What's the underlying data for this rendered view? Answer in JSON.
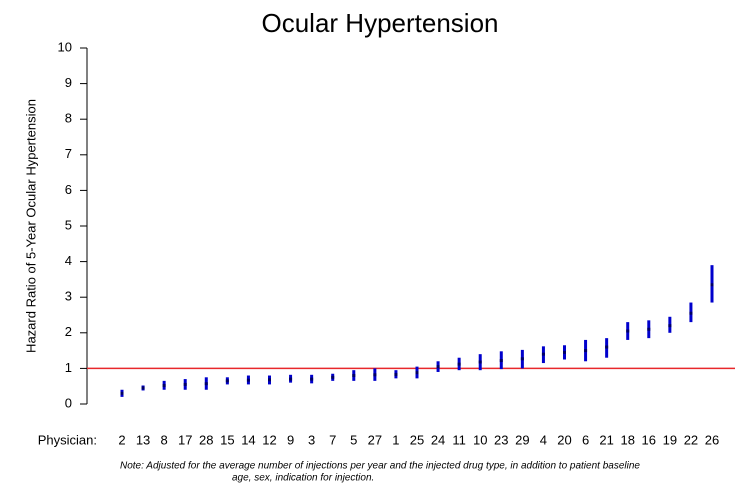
{
  "chart_data": {
    "type": "errorbar",
    "title": "Ocular Hypertension",
    "y_label": "Hazard Ratio of 5-Year Ocular Hypertension",
    "x_label": "Physician:",
    "note": [
      "Note: Adjusted for the average number of injections per year and the injected drug type, in addition to patient baseline",
      "age, sex, indication for injection."
    ],
    "categories": [
      "2",
      "13",
      "8",
      "17",
      "28",
      "15",
      "14",
      "12",
      "9",
      "3",
      "7",
      "5",
      "27",
      "1",
      "25",
      "24",
      "11",
      "10",
      "23",
      "29",
      "4",
      "20",
      "6",
      "21",
      "18",
      "16",
      "19",
      "22",
      "26"
    ],
    "values": [
      0.3,
      0.45,
      0.52,
      0.55,
      0.57,
      0.65,
      0.67,
      0.68,
      0.7,
      0.7,
      0.75,
      0.8,
      0.82,
      0.83,
      0.88,
      1.05,
      1.12,
      1.18,
      1.22,
      1.27,
      1.4,
      1.45,
      1.5,
      1.6,
      2.05,
      2.1,
      2.2,
      2.55,
      3.35
    ],
    "lower": [
      0.2,
      0.38,
      0.4,
      0.4,
      0.4,
      0.55,
      0.55,
      0.55,
      0.6,
      0.58,
      0.65,
      0.65,
      0.65,
      0.72,
      0.72,
      0.9,
      0.95,
      0.95,
      0.98,
      1.0,
      1.15,
      1.25,
      1.2,
      1.3,
      1.8,
      1.85,
      2.0,
      2.3,
      2.85
    ],
    "upper": [
      0.4,
      0.52,
      0.65,
      0.7,
      0.75,
      0.75,
      0.8,
      0.8,
      0.82,
      0.82,
      0.85,
      0.95,
      1.0,
      0.95,
      1.05,
      1.2,
      1.3,
      1.4,
      1.48,
      1.52,
      1.62,
      1.65,
      1.8,
      1.85,
      2.3,
      2.35,
      2.45,
      2.85,
      3.9
    ],
    "color": "#0000cc",
    "reference_line": 1,
    "reference_color": "#e8282b",
    "ylim": [
      0,
      10
    ],
    "yticks": [
      0,
      1,
      2,
      3,
      4,
      5,
      6,
      7,
      8,
      9,
      10
    ]
  }
}
